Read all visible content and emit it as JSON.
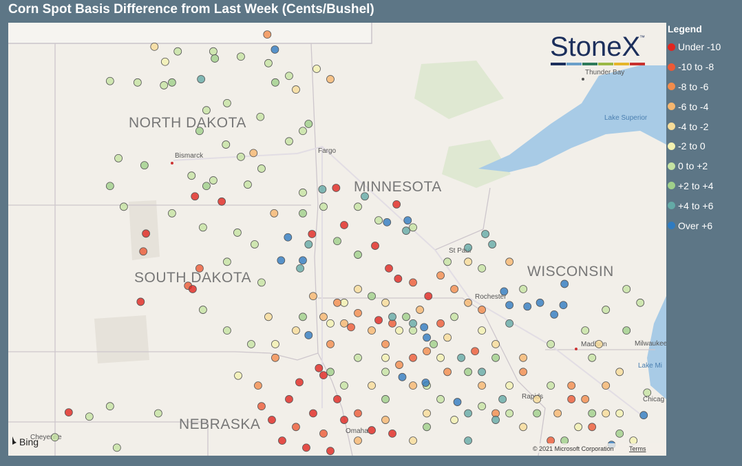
{
  "title": "Corn Spot Basis Difference from Last Week (Cents/Bushel)",
  "logo": "StoneX",
  "logo_mark": "™",
  "map_labels": [
    "NORTH DAKOTA",
    "SOUTH DAKOTA",
    "NEBRASKA",
    "MINNESOTA",
    "WISCONSIN"
  ],
  "city_labels": [
    "Bismarck",
    "Fargo",
    "Thunder Bay",
    "St Paul",
    "Rochester",
    "Madison",
    "Milwaukee",
    "Rapids",
    "Chicag",
    "Omaha",
    "Cheyenne"
  ],
  "water_labels": [
    "Lake Superior",
    "Lake Mi"
  ],
  "attribution": {
    "logo": "Bing",
    "copyright": "© 2021 Microsoft Corporation",
    "terms": "Terms"
  },
  "legend": {
    "title": "Legend",
    "items": [
      {
        "label": "Under -10",
        "color": "#e0261f",
        "points": [
          [
            -99.72,
            45.81
          ],
          [
            -99.02,
            45.7
          ],
          [
            -101.0,
            45.02
          ],
          [
            -101.14,
            43.57
          ],
          [
            -103.02,
            41.22
          ],
          [
            -96.03,
            45.99
          ],
          [
            -95.82,
            45.2
          ],
          [
            -94.45,
            45.64
          ],
          [
            -96.66,
            45.01
          ],
          [
            -95.01,
            44.76
          ],
          [
            -94.65,
            44.28
          ],
          [
            -94.41,
            44.06
          ],
          [
            -94.92,
            43.18
          ],
          [
            -96.48,
            42.16
          ],
          [
            -96.36,
            42.01
          ],
          [
            -96.99,
            41.86
          ],
          [
            -97.26,
            41.5
          ],
          [
            -97.71,
            41.06
          ],
          [
            -97.44,
            40.62
          ],
          [
            -96.81,
            40.47
          ],
          [
            -96.18,
            40.4
          ],
          [
            -95.82,
            41.06
          ],
          [
            -95.1,
            40.84
          ],
          [
            -94.56,
            40.77
          ],
          [
            -96.63,
            41.2
          ],
          [
            -96.0,
            41.5
          ],
          [
            -99.78,
            43.84
          ],
          [
            -93.62,
            43.69
          ]
        ]
      },
      {
        "label": "-10 to -8",
        "color": "#ec5a36",
        "points": [
          [
            -101.07,
            44.64
          ],
          [
            -99.9,
            43.91
          ],
          [
            -99.6,
            44.28
          ],
          [
            -97.98,
            41.35
          ],
          [
            -97.08,
            40.91
          ],
          [
            -96.36,
            40.77
          ],
          [
            -95.46,
            41.2
          ],
          [
            -94.56,
            43.11
          ],
          [
            -94.02,
            42.38
          ],
          [
            -93.3,
            43.11
          ],
          [
            -92.4,
            42.52
          ],
          [
            -89.88,
            41.5
          ],
          [
            -89.34,
            40.91
          ],
          [
            -90.42,
            40.62
          ],
          [
            -95.64,
            43.03
          ],
          [
            -94.02,
            43.98
          ]
        ]
      },
      {
        "label": "-8 to -6",
        "color": "#f28c4c",
        "points": [
          [
            -97.83,
            49.25
          ],
          [
            -96.0,
            43.55
          ],
          [
            -95.46,
            43.33
          ],
          [
            -94.74,
            42.67
          ],
          [
            -94.38,
            42.23
          ],
          [
            -93.66,
            42.52
          ],
          [
            -92.94,
            43.84
          ],
          [
            -92.22,
            43.4
          ],
          [
            -93.12,
            42.08
          ],
          [
            -91.14,
            42.08
          ],
          [
            -89.88,
            41.79
          ],
          [
            -91.86,
            41.2
          ],
          [
            -96.18,
            42.67
          ],
          [
            -97.62,
            42.38
          ],
          [
            -98.07,
            41.79
          ],
          [
            -89.52,
            41.5
          ],
          [
            -93.3,
            44.13
          ]
        ]
      },
      {
        "label": "-6 to -4",
        "color": "#f6b66f",
        "points": [
          [
            -96.18,
            48.3
          ],
          [
            -97.65,
            45.45
          ],
          [
            -98.19,
            46.73
          ],
          [
            -96.36,
            43.25
          ],
          [
            -95.82,
            43.11
          ],
          [
            -95.1,
            42.96
          ],
          [
            -93.84,
            43.4
          ],
          [
            -92.58,
            43.55
          ],
          [
            -91.5,
            44.42
          ],
          [
            -91.14,
            42.38
          ],
          [
            -94.02,
            41.79
          ],
          [
            -92.22,
            41.79
          ],
          [
            -94.74,
            41.06
          ],
          [
            -95.46,
            40.62
          ],
          [
            -90.24,
            41.2
          ],
          [
            -88.98,
            41.79
          ],
          [
            -96.63,
            43.69
          ]
        ]
      },
      {
        "label": "-4 to -2",
        "color": "#f7dc98",
        "points": [
          [
            -100.78,
            48.99
          ],
          [
            -97.08,
            48.08
          ],
          [
            -95.46,
            43.84
          ],
          [
            -94.74,
            43.55
          ],
          [
            -93.12,
            42.81
          ],
          [
            -91.86,
            42.67
          ],
          [
            -90.78,
            41.5
          ],
          [
            -95.1,
            41.79
          ],
          [
            -93.66,
            41.2
          ],
          [
            -88.98,
            41.2
          ],
          [
            -88.62,
            42.08
          ],
          [
            -97.8,
            43.25
          ],
          [
            -97.08,
            42.96
          ],
          [
            -91.14,
            40.91
          ],
          [
            -94.02,
            40.62
          ],
          [
            -89.16,
            42.67
          ],
          [
            -92.58,
            44.42
          ]
        ]
      },
      {
        "label": "-2 to 0",
        "color": "#f3f1b0",
        "points": [
          [
            -100.5,
            48.67
          ],
          [
            -96.54,
            48.52
          ],
          [
            -95.82,
            43.55
          ],
          [
            -94.38,
            42.96
          ],
          [
            -93.3,
            42.38
          ],
          [
            -92.22,
            42.96
          ],
          [
            -94.74,
            42.38
          ],
          [
            -91.5,
            41.79
          ],
          [
            -89.7,
            40.91
          ],
          [
            -88.26,
            40.62
          ],
          [
            -92.94,
            41.06
          ],
          [
            -97.62,
            42.67
          ],
          [
            -98.59,
            42.0
          ],
          [
            -96.18,
            43.11
          ],
          [
            -88.62,
            41.2
          ]
        ]
      },
      {
        "label": "0 to +2",
        "color": "#c5e3a2",
        "points": [
          [
            -101.94,
            48.26
          ],
          [
            -101.22,
            48.23
          ],
          [
            -100.53,
            48.17
          ],
          [
            -100.17,
            48.89
          ],
          [
            -99.24,
            48.89
          ],
          [
            -98.52,
            48.78
          ],
          [
            -97.8,
            48.64
          ],
          [
            -97.26,
            48.37
          ],
          [
            -98.88,
            47.79
          ],
          [
            -98.01,
            47.5
          ],
          [
            -99.42,
            47.64
          ],
          [
            -98.91,
            46.91
          ],
          [
            -98.52,
            46.65
          ],
          [
            -101.72,
            46.62
          ],
          [
            -99.81,
            46.25
          ],
          [
            -99.24,
            46.15
          ],
          [
            -98.34,
            46.06
          ],
          [
            -97.98,
            46.4
          ],
          [
            -97.26,
            46.98
          ],
          [
            -96.9,
            47.2
          ],
          [
            -101.58,
            45.59
          ],
          [
            -100.32,
            45.45
          ],
          [
            -99.51,
            45.15
          ],
          [
            -98.61,
            45.04
          ],
          [
            -98.16,
            44.79
          ],
          [
            -98.88,
            44.42
          ],
          [
            -97.98,
            43.98
          ],
          [
            -99.51,
            43.4
          ],
          [
            -98.88,
            42.96
          ],
          [
            -98.25,
            42.67
          ],
          [
            -102.48,
            41.13
          ],
          [
            -101.94,
            41.35
          ],
          [
            -100.68,
            41.2
          ],
          [
            -103.38,
            40.69
          ],
          [
            -101.76,
            40.47
          ],
          [
            -96.9,
            45.89
          ],
          [
            -96.36,
            45.59
          ],
          [
            -95.46,
            45.59
          ],
          [
            -94.92,
            45.3
          ],
          [
            -94.02,
            45.15
          ],
          [
            -93.12,
            44.42
          ],
          [
            -92.22,
            44.28
          ],
          [
            -91.14,
            43.84
          ],
          [
            -90.42,
            42.67
          ],
          [
            -89.52,
            42.96
          ],
          [
            -88.98,
            43.4
          ],
          [
            -88.44,
            43.84
          ],
          [
            -88.08,
            43.55
          ],
          [
            -89.34,
            42.38
          ],
          [
            -87.9,
            41.64
          ],
          [
            -94.02,
            42.96
          ],
          [
            -92.94,
            43.25
          ],
          [
            -93.66,
            41.79
          ],
          [
            -92.22,
            41.35
          ],
          [
            -94.74,
            42.08
          ],
          [
            -95.46,
            42.38
          ],
          [
            -95.82,
            41.79
          ],
          [
            -93.3,
            41.5
          ],
          [
            -91.5,
            41.2
          ],
          [
            -90.42,
            41.79
          ]
        ]
      },
      {
        "label": "+2 to +4",
        "color": "#9fd08a",
        "points": [
          [
            -99.2,
            48.74
          ],
          [
            -97.62,
            48.23
          ],
          [
            -99.6,
            47.2
          ],
          [
            -96.75,
            47.35
          ],
          [
            -101.04,
            46.47
          ],
          [
            -99.42,
            46.03
          ],
          [
            -96.9,
            45.45
          ],
          [
            -96.0,
            44.86
          ],
          [
            -95.46,
            44.57
          ],
          [
            -95.1,
            43.69
          ],
          [
            -94.2,
            43.25
          ],
          [
            -93.48,
            42.67
          ],
          [
            -92.58,
            42.08
          ],
          [
            -91.86,
            42.38
          ],
          [
            -90.78,
            41.2
          ],
          [
            -90.06,
            40.62
          ],
          [
            -89.34,
            41.2
          ],
          [
            -88.62,
            40.77
          ],
          [
            -88.44,
            42.96
          ],
          [
            -93.66,
            40.91
          ],
          [
            -94.74,
            41.5
          ],
          [
            -96.18,
            42.08
          ],
          [
            -96.9,
            43.25
          ],
          [
            -100.32,
            48.23
          ],
          [
            -101.94,
            46.03
          ]
        ]
      },
      {
        "label": "+4 to +6",
        "color": "#64aaa6",
        "points": [
          [
            -99.56,
            48.3
          ],
          [
            -96.39,
            45.96
          ],
          [
            -95.28,
            45.81
          ],
          [
            -94.2,
            45.08
          ],
          [
            -92.13,
            45.01
          ],
          [
            -91.95,
            44.79
          ],
          [
            -92.58,
            44.72
          ],
          [
            -91.5,
            43.11
          ],
          [
            -92.76,
            42.38
          ],
          [
            -92.22,
            42.08
          ],
          [
            -92.58,
            41.2
          ],
          [
            -91.86,
            41.06
          ],
          [
            -92.58,
            40.62
          ],
          [
            -91.68,
            41.5
          ],
          [
            -94.02,
            43.11
          ],
          [
            -96.75,
            44.79
          ],
          [
            -96.97,
            44.28
          ],
          [
            -94.56,
            43.25
          ]
        ]
      },
      {
        "label": "Over +6",
        "color": "#2f7bc0",
        "points": [
          [
            -97.63,
            48.93
          ],
          [
            -97.29,
            44.94
          ],
          [
            -97.47,
            44.45
          ],
          [
            -96.9,
            44.45
          ],
          [
            -94.7,
            45.26
          ],
          [
            -94.16,
            45.3
          ],
          [
            -91.64,
            43.79
          ],
          [
            -91.5,
            43.5
          ],
          [
            -91.03,
            43.47
          ],
          [
            -90.7,
            43.55
          ],
          [
            -90.33,
            43.3
          ],
          [
            -90.09,
            43.5
          ],
          [
            -90.06,
            43.95
          ],
          [
            -96.75,
            42.86
          ],
          [
            -93.73,
            43.03
          ],
          [
            -93.66,
            42.81
          ],
          [
            -94.3,
            41.97
          ],
          [
            -93.69,
            41.85
          ],
          [
            -92.86,
            41.44
          ],
          [
            -87.99,
            41.16
          ],
          [
            -88.83,
            40.53
          ]
        ]
      }
    ]
  }
}
